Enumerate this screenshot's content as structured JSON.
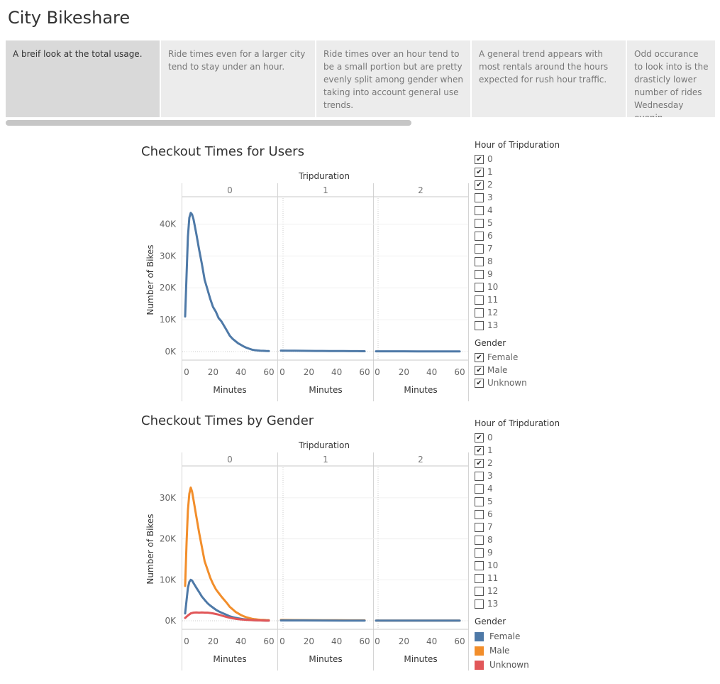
{
  "dashboard_title": "City Bikeshare",
  "story_points": [
    {
      "text": "A breif look at the total usage."
    },
    {
      "text": "Ride times even for a larger city tend to stay under an hour."
    },
    {
      "text": "Ride times over an hour tend to be a small portion but are pretty evenly split among gender when taking into account general use trends."
    },
    {
      "text": "A general trend appears with most rentals around the hours expected for rush hour traffic."
    },
    {
      "text": "Odd occurance to look into is the drasticly lower number of rides Wednesday evenin.."
    }
  ],
  "colors": {
    "female": "#4e79a7",
    "male": "#f28e2b",
    "unknown": "#e15759",
    "all_users": "#4e79a7"
  },
  "filters": {
    "hour_title": "Hour of Tripduration",
    "hours": [
      {
        "label": "0",
        "checked": true
      },
      {
        "label": "1",
        "checked": true
      },
      {
        "label": "2",
        "checked": true
      },
      {
        "label": "3",
        "checked": false
      },
      {
        "label": "4",
        "checked": false
      },
      {
        "label": "5",
        "checked": false
      },
      {
        "label": "6",
        "checked": false
      },
      {
        "label": "7",
        "checked": false
      },
      {
        "label": "8",
        "checked": false
      },
      {
        "label": "9",
        "checked": false
      },
      {
        "label": "10",
        "checked": false
      },
      {
        "label": "11",
        "checked": false
      },
      {
        "label": "12",
        "checked": false
      },
      {
        "label": "13",
        "checked": false
      }
    ],
    "gender_title": "Gender",
    "genders": [
      {
        "label": "Female",
        "checked": true
      },
      {
        "label": "Male",
        "checked": true
      },
      {
        "label": "Unknown",
        "checked": true
      }
    ]
  },
  "legend": {
    "title": "Gender",
    "items": [
      {
        "label": "Female",
        "color": "#4e79a7"
      },
      {
        "label": "Male",
        "color": "#f28e2b"
      },
      {
        "label": "Unknown",
        "color": "#e15759"
      }
    ]
  },
  "chart_data": [
    {
      "type": "line",
      "title": "Checkout Times for Users",
      "column_header": "Tripduration",
      "panels": [
        "0",
        "1",
        "2"
      ],
      "xlabel": "Minutes",
      "ylabel": "Number of Bikes",
      "xticks": [
        "0",
        "20",
        "40",
        "60"
      ],
      "yticks": [
        "0K",
        "10K",
        "20K",
        "30K",
        "40K"
      ],
      "xlim": [
        0,
        60
      ],
      "ylim": [
        0,
        45000
      ],
      "grid": true,
      "series": [
        {
          "panel": "0",
          "points": [
            [
              0,
              11000
            ],
            [
              1,
              24000
            ],
            [
              2,
              36000
            ],
            [
              3,
              42000
            ],
            [
              4,
              43500
            ],
            [
              5,
              43000
            ],
            [
              6,
              41500
            ],
            [
              8,
              37000
            ],
            [
              10,
              32000
            ],
            [
              12,
              27500
            ],
            [
              14,
              22500
            ],
            [
              16,
              19500
            ],
            [
              18,
              16500
            ],
            [
              20,
              14000
            ],
            [
              22,
              12500
            ],
            [
              24,
              10500
            ],
            [
              26,
              9500
            ],
            [
              28,
              8000
            ],
            [
              30,
              6500
            ],
            [
              32,
              5000
            ],
            [
              34,
              4000
            ],
            [
              36,
              3300
            ],
            [
              38,
              2600
            ],
            [
              40,
              2100
            ],
            [
              42,
              1600
            ],
            [
              44,
              1200
            ],
            [
              46,
              900
            ],
            [
              48,
              600
            ],
            [
              50,
              450
            ],
            [
              52,
              350
            ],
            [
              54,
              300
            ],
            [
              56,
              250
            ],
            [
              58,
              200
            ],
            [
              60,
              180
            ]
          ]
        },
        {
          "panel": "1",
          "points": [
            [
              0,
              320
            ],
            [
              5,
              300
            ],
            [
              10,
              280
            ],
            [
              15,
              250
            ],
            [
              20,
              230
            ],
            [
              25,
              210
            ],
            [
              30,
              190
            ],
            [
              35,
              180
            ],
            [
              40,
              160
            ],
            [
              45,
              150
            ],
            [
              50,
              140
            ],
            [
              55,
              130
            ],
            [
              60,
              120
            ]
          ]
        },
        {
          "panel": "2",
          "points": [
            [
              0,
              90
            ],
            [
              10,
              85
            ],
            [
              20,
              80
            ],
            [
              30,
              75
            ],
            [
              40,
              70
            ],
            [
              50,
              65
            ],
            [
              60,
              60
            ]
          ]
        }
      ]
    },
    {
      "type": "line",
      "title": "Checkout Times by Gender",
      "column_header": "Tripduration",
      "panels": [
        "0",
        "1",
        "2"
      ],
      "xlabel": "Minutes",
      "ylabel": "Number of Bikes",
      "xticks": [
        "0",
        "20",
        "40",
        "60"
      ],
      "yticks": [
        "0K",
        "10K",
        "20K",
        "30K"
      ],
      "xlim": [
        0,
        60
      ],
      "ylim": [
        0,
        35000
      ],
      "grid": true,
      "series": [
        {
          "name": "Male",
          "panel": "0",
          "points": [
            [
              0,
              8500
            ],
            [
              1,
              19000
            ],
            [
              2,
              27000
            ],
            [
              3,
              31000
            ],
            [
              4,
              32500
            ],
            [
              5,
              31500
            ],
            [
              6,
              29500
            ],
            [
              8,
              25500
            ],
            [
              10,
              21500
            ],
            [
              12,
              18000
            ],
            [
              14,
              14500
            ],
            [
              16,
              12500
            ],
            [
              18,
              10500
            ],
            [
              20,
              9000
            ],
            [
              22,
              7700
            ],
            [
              24,
              6800
            ],
            [
              26,
              5900
            ],
            [
              28,
              5100
            ],
            [
              30,
              4300
            ],
            [
              32,
              3400
            ],
            [
              34,
              2800
            ],
            [
              36,
              2200
            ],
            [
              38,
              1800
            ],
            [
              40,
              1400
            ],
            [
              42,
              1100
            ],
            [
              44,
              850
            ],
            [
              46,
              650
            ],
            [
              48,
              480
            ],
            [
              50,
              380
            ],
            [
              52,
              300
            ],
            [
              54,
              250
            ],
            [
              56,
              200
            ],
            [
              58,
              170
            ],
            [
              60,
              150
            ]
          ]
        },
        {
          "name": "Female",
          "panel": "0",
          "points": [
            [
              0,
              1800
            ],
            [
              1,
              5000
            ],
            [
              2,
              8000
            ],
            [
              3,
              9500
            ],
            [
              4,
              10000
            ],
            [
              5,
              9800
            ],
            [
              6,
              9200
            ],
            [
              8,
              8100
            ],
            [
              10,
              7000
            ],
            [
              12,
              5900
            ],
            [
              14,
              5100
            ],
            [
              16,
              4300
            ],
            [
              18,
              3700
            ],
            [
              20,
              3200
            ],
            [
              22,
              2700
            ],
            [
              24,
              2300
            ],
            [
              26,
              2000
            ],
            [
              28,
              1700
            ],
            [
              30,
              1400
            ],
            [
              32,
              1100
            ],
            [
              34,
              900
            ],
            [
              36,
              750
            ],
            [
              38,
              600
            ],
            [
              40,
              480
            ],
            [
              42,
              380
            ],
            [
              44,
              300
            ],
            [
              46,
              230
            ],
            [
              48,
              180
            ],
            [
              50,
              140
            ],
            [
              52,
              110
            ],
            [
              54,
              90
            ],
            [
              56,
              75
            ],
            [
              58,
              60
            ],
            [
              60,
              50
            ]
          ]
        },
        {
          "name": "Unknown",
          "panel": "0",
          "points": [
            [
              0,
              700
            ],
            [
              2,
              1300
            ],
            [
              4,
              1800
            ],
            [
              6,
              2000
            ],
            [
              8,
              2050
            ],
            [
              10,
              2000
            ],
            [
              12,
              2050
            ],
            [
              14,
              2000
            ],
            [
              16,
              2000
            ],
            [
              18,
              1900
            ],
            [
              20,
              1800
            ],
            [
              22,
              1650
            ],
            [
              24,
              1500
            ],
            [
              26,
              1300
            ],
            [
              28,
              1100
            ],
            [
              30,
              900
            ],
            [
              32,
              750
            ],
            [
              34,
              600
            ],
            [
              36,
              480
            ],
            [
              38,
              400
            ],
            [
              40,
              330
            ],
            [
              42,
              280
            ],
            [
              44,
              230
            ],
            [
              46,
              190
            ],
            [
              48,
              160
            ],
            [
              50,
              130
            ],
            [
              52,
              110
            ],
            [
              54,
              90
            ],
            [
              56,
              75
            ],
            [
              58,
              60
            ],
            [
              60,
              50
            ]
          ]
        },
        {
          "name": "Male",
          "panel": "1",
          "points": [
            [
              0,
              200
            ],
            [
              10,
              180
            ],
            [
              20,
              160
            ],
            [
              30,
              140
            ],
            [
              40,
              120
            ],
            [
              50,
              110
            ],
            [
              60,
              100
            ]
          ]
        },
        {
          "name": "Female",
          "panel": "1",
          "points": [
            [
              0,
              90
            ],
            [
              15,
              80
            ],
            [
              30,
              70
            ],
            [
              45,
              60
            ],
            [
              60,
              55
            ]
          ]
        },
        {
          "name": "Male",
          "panel": "2",
          "points": [
            [
              0,
              60
            ],
            [
              20,
              55
            ],
            [
              40,
              50
            ],
            [
              60,
              45
            ]
          ]
        },
        {
          "name": "Female",
          "panel": "2",
          "points": [
            [
              0,
              40
            ],
            [
              20,
              38
            ],
            [
              40,
              35
            ],
            [
              60,
              32
            ]
          ]
        }
      ]
    }
  ]
}
